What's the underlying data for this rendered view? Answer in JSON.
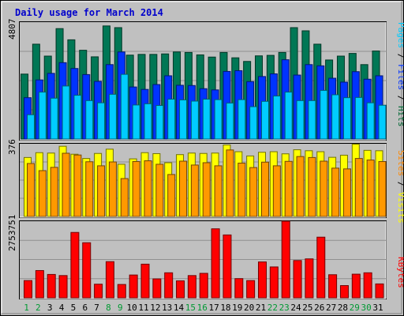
{
  "chart_data": {
    "type": "bar",
    "title": "Daily usage for March 2014",
    "categories": [
      "1",
      "2",
      "3",
      "4",
      "5",
      "6",
      "7",
      "8",
      "9",
      "10",
      "11",
      "12",
      "13",
      "14",
      "15",
      "16",
      "17",
      "18",
      "19",
      "20",
      "21",
      "22",
      "23",
      "24",
      "25",
      "26",
      "27",
      "28",
      "29",
      "30",
      "31"
    ],
    "weekend_days": [
      "1",
      "2",
      "8",
      "9",
      "15",
      "16",
      "22",
      "23",
      "29",
      "30"
    ],
    "panels": [
      {
        "id": "top",
        "max_label": "4807",
        "ymax": 4807,
        "axis_labels": [
          {
            "text": "Pages",
            "color": "#00ccff"
          },
          {
            "text": " / ",
            "color": "#000000"
          },
          {
            "text": "Files",
            "color": "#0033ff"
          },
          {
            "text": " / ",
            "color": "#000000"
          },
          {
            "text": "Hits",
            "color": "#006633"
          }
        ],
        "series": [
          {
            "name": "Hits",
            "color": "#007755",
            "values": [
              2670,
              3900,
              3410,
              4540,
              4080,
              3650,
              3380,
              4650,
              4580,
              3450,
              3480,
              3480,
              3500,
              3580,
              3560,
              3460,
              3370,
              3560,
              3340,
              3190,
              3420,
              3440,
              3560,
              4580,
              4450,
              3900,
              3250,
              3410,
              3520,
              3060,
              3620
            ]
          },
          {
            "name": "Files",
            "color": "#0033ff",
            "values": [
              1700,
              2430,
              2700,
              3140,
              2900,
              2650,
              2370,
              3060,
              3580,
              2140,
              2040,
              2240,
              2600,
              2210,
              2200,
              2070,
              2020,
              2780,
              2810,
              2360,
              2570,
              2680,
              3260,
              2630,
              3060,
              3010,
              2500,
              2340,
              2770,
              2460,
              2600
            ]
          },
          {
            "name": "Pages",
            "color": "#00ccff",
            "values": [
              1000,
              1930,
              1680,
              2180,
              1800,
              1580,
              1490,
              1840,
              2660,
              1400,
              1450,
              1380,
              1640,
              1610,
              1560,
              1640,
              1620,
              1480,
              1620,
              1330,
              1550,
              1770,
              1930,
              1580,
              1580,
              2000,
              1820,
              1700,
              1710,
              1490,
              1390
            ]
          }
        ]
      },
      {
        "id": "middle",
        "max_label": "376",
        "ymax": 376,
        "axis_labels": [
          {
            "text": "Sites",
            "color": "#ff8800"
          },
          {
            "text": " / ",
            "color": "#000000"
          },
          {
            "text": "Visits",
            "color": "#ffff00"
          }
        ],
        "series": [
          {
            "name": "Visits",
            "color": "#ffff00",
            "values": [
              305,
              330,
              328,
              363,
              322,
              300,
              326,
              348,
              270,
              298,
              330,
              325,
              278,
              320,
              328,
              326,
              328,
              370,
              335,
              313,
              332,
              335,
              324,
              345,
              340,
              335,
              306,
              317,
              374,
              342,
              340
            ]
          },
          {
            "name": "Sites",
            "color": "#ff9900",
            "values": [
              274,
              237,
              254,
              327,
              318,
              283,
              262,
              282,
              196,
              284,
              288,
              270,
              217,
              286,
              266,
              278,
              262,
              344,
              276,
              253,
              281,
              262,
              285,
              310,
              305,
              286,
              250,
              246,
              300,
              292,
              284
            ]
          }
        ]
      },
      {
        "id": "bottom",
        "max_label": "2753751",
        "ymax": 2753751,
        "axis_labels": [
          {
            "text": "KBytes",
            "color": "#ff0000"
          }
        ],
        "series": [
          {
            "name": "KBytes",
            "color": "#ff0000",
            "values": [
              620000,
              980000,
              840000,
              800000,
              2350000,
              1980000,
              490000,
              1300000,
              480000,
              820000,
              1210000,
              680000,
              900000,
              610000,
              800000,
              880000,
              2480000,
              2260000,
              690000,
              620000,
              1290000,
              1110000,
              2753751,
              1340000,
              1400000,
              2180000,
              830000,
              440000,
              850000,
              900000,
              500000
            ]
          }
        ]
      }
    ]
  }
}
